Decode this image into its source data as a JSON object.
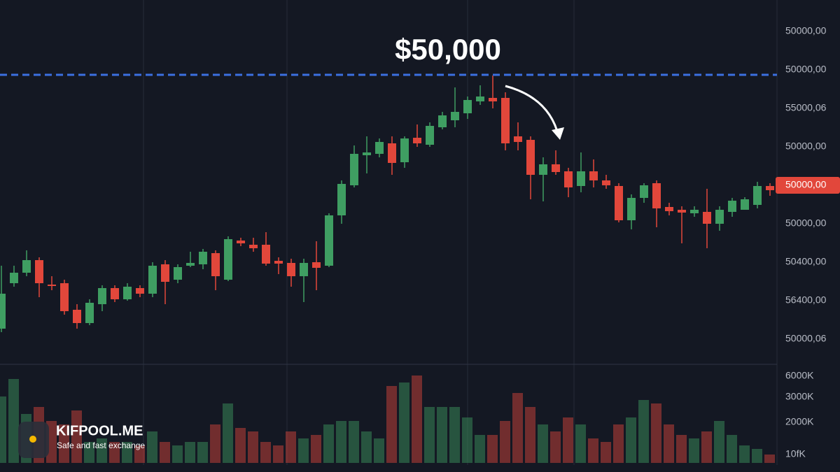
{
  "chart_data": {
    "type": "candlestick",
    "title": "$50,000",
    "ylim": [
      0,
      520
    ],
    "level": 413,
    "up_color": "#3f9e62",
    "down_color": "#e2473b",
    "level_color": "#3b6fe0",
    "open": [
      50,
      115,
      130,
      148,
      113,
      115,
      77,
      58,
      85,
      108,
      92,
      108,
      100,
      142,
      120,
      140,
      142,
      158,
      120,
      176,
      170,
      170,
      147,
      144,
      125,
      145,
      140,
      212,
      255,
      298,
      300,
      315,
      288,
      323,
      313,
      338,
      348,
      358,
      375,
      380,
      380,
      325,
      320,
      270,
      285,
      275,
      254,
      275,
      262,
      254,
      205,
      237,
      258,
      224,
      220,
      215,
      217,
      200,
      217,
      220,
      227,
      254
    ],
    "close": [
      100,
      130,
      148,
      115,
      112,
      75,
      58,
      87,
      108,
      92,
      110,
      100,
      140,
      117,
      138,
      144,
      160,
      125,
      178,
      172,
      165,
      143,
      143,
      125,
      144,
      137,
      212,
      257,
      300,
      302,
      317,
      287,
      322,
      315,
      340,
      355,
      360,
      377,
      382,
      375,
      315,
      317,
      270,
      285,
      274,
      252,
      275,
      262,
      255,
      205,
      237,
      255,
      222,
      218,
      216,
      220,
      200,
      220,
      233,
      235,
      254,
      248
    ],
    "high": [
      140,
      140,
      162,
      152,
      125,
      120,
      85,
      92,
      112,
      112,
      115,
      112,
      145,
      148,
      142,
      160,
      164,
      162,
      182,
      180,
      180,
      188,
      152,
      150,
      150,
      175,
      215,
      262,
      312,
      325,
      322,
      325,
      325,
      342,
      345,
      360,
      395,
      382,
      398,
      412,
      388,
      345,
      325,
      295,
      305,
      280,
      302,
      292,
      270,
      258,
      242,
      258,
      262,
      230,
      225,
      225,
      250,
      225,
      237,
      238,
      260,
      258
    ],
    "low": [
      45,
      110,
      125,
      95,
      105,
      70,
      50,
      55,
      75,
      88,
      90,
      95,
      95,
      85,
      115,
      138,
      135,
      105,
      118,
      168,
      160,
      140,
      128,
      110,
      88,
      105,
      138,
      200,
      252,
      272,
      295,
      270,
      280,
      310,
      310,
      335,
      338,
      350,
      370,
      365,
      305,
      305,
      235,
      232,
      270,
      238,
      245,
      252,
      250,
      202,
      192,
      230,
      195,
      212,
      172,
      210,
      165,
      190,
      210,
      220,
      222,
      240
    ],
    "price_labels": [
      "50000,00",
      "50000,00",
      "55000,06",
      "50000,00",
      "50000,00",
      "50000,00",
      "50400,00",
      "56400,00",
      "50000,06"
    ],
    "current_label_index": 4,
    "volume": {
      "ylim": [
        0,
        135
      ],
      "values": [
        95,
        120,
        70,
        80,
        60,
        55,
        75,
        30,
        35,
        30,
        30,
        25,
        45,
        30,
        25,
        30,
        30,
        55,
        85,
        50,
        45,
        30,
        25,
        45,
        35,
        40,
        55,
        60,
        60,
        45,
        35,
        110,
        115,
        125,
        80,
        80,
        80,
        65,
        40,
        40,
        60,
        100,
        80,
        55,
        45,
        65,
        55,
        35,
        30,
        55,
        65,
        90,
        85,
        55,
        40,
        35,
        45,
        60,
        40,
        25,
        20,
        12
      ],
      "labels": [
        "6000K",
        "3000K",
        "2000K",
        "10fK"
      ]
    }
  },
  "branding": {
    "name": "KIFPOOL.ME",
    "tagline": "Safe and fast exchange"
  }
}
